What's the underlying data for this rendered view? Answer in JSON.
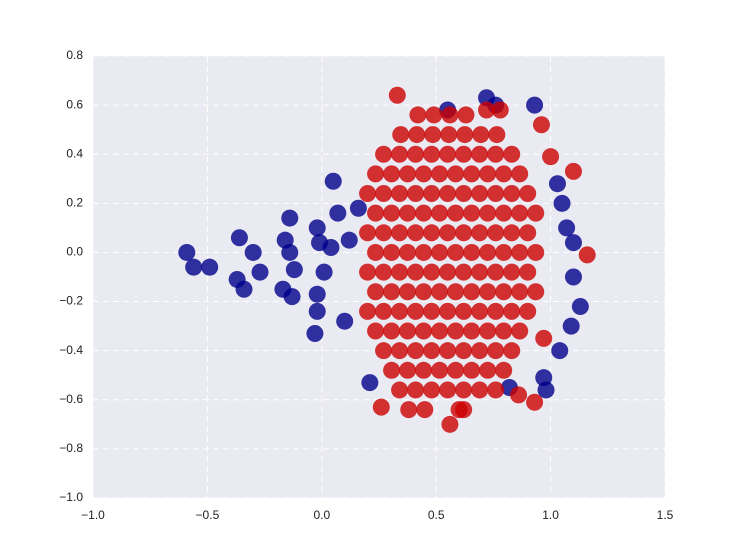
{
  "chart_data": {
    "type": "scatter",
    "xlim": [
      -1,
      1.5
    ],
    "xticks": [
      {
        "value": -1,
        "label": "−1.0"
      },
      {
        "value": -0.5,
        "label": "−0.5"
      },
      {
        "value": 0,
        "label": "0.0"
      },
      0.5,
      {
        "value": 1,
        "label": "1.0"
      },
      1.5
    ],
    "ylim": [
      -1,
      0.8
    ],
    "yticks": [
      {
        "value": -1,
        "label": "−1.0"
      },
      {
        "value": -0.8,
        "label": "−0.8"
      },
      {
        "value": -0.6,
        "label": "−0.6"
      },
      {
        "value": -0.4,
        "label": "−0.4"
      },
      {
        "value": -0.2,
        "label": "−0.2"
      },
      {
        "value": 0,
        "label": "0.0"
      },
      0.2,
      0.4,
      0.6,
      0.8
    ],
    "grid": true,
    "series": [
      {
        "color": "#00008b",
        "x": [
          -0.59,
          -0.56,
          -0.49,
          -0.36,
          -0.37,
          -0.34,
          -0.3,
          -0.27,
          -0.16,
          -0.14,
          -0.14,
          -0.12,
          -0.17,
          -0.13,
          -0.02,
          0.05,
          -0.01,
          0.01,
          -0.02,
          -0.02,
          -0.03,
          0.1,
          0.07,
          0.04,
          0.16,
          0.12,
          0.72,
          0.76,
          0.93,
          0.55,
          1.03,
          1.07,
          1.1,
          1.13,
          1.09,
          1.04,
          0.97,
          0.98,
          0.82,
          0.21,
          1.1,
          1.05
        ],
        "values": [
          0,
          -0.06,
          -0.06,
          0.06,
          -0.11,
          -0.15,
          0,
          -0.08,
          0.05,
          0.14,
          0,
          -0.07,
          -0.15,
          -0.18,
          0.1,
          0.29,
          0.04,
          -0.08,
          -0.17,
          -0.24,
          -0.33,
          -0.28,
          0.16,
          0.02,
          0.18,
          0.05,
          0.63,
          0.6,
          0.6,
          0.58,
          0.28,
          0.1,
          -0.1,
          -0.22,
          -0.3,
          -0.4,
          -0.51,
          -0.56,
          -0.55,
          -0.53,
          0.04,
          0.2
        ]
      },
      {
        "color": "#cc0000",
        "x": [
          0.42,
          0.49,
          0.56,
          0.63,
          0.345,
          0.415,
          0.485,
          0.555,
          0.625,
          0.695,
          0.765,
          0.27,
          0.34,
          0.41,
          0.48,
          0.55,
          0.62,
          0.69,
          0.76,
          0.83,
          0.235,
          0.305,
          0.375,
          0.445,
          0.515,
          0.585,
          0.655,
          0.725,
          0.795,
          0.865,
          0.2,
          0.27,
          0.34,
          0.41,
          0.48,
          0.55,
          0.62,
          0.69,
          0.76,
          0.83,
          0.9,
          0.235,
          0.305,
          0.375,
          0.445,
          0.515,
          0.585,
          0.655,
          0.725,
          0.795,
          0.865,
          0.935,
          0.2,
          0.27,
          0.34,
          0.41,
          0.48,
          0.55,
          0.62,
          0.69,
          0.76,
          0.83,
          0.9,
          0.235,
          0.305,
          0.375,
          0.445,
          0.515,
          0.585,
          0.655,
          0.725,
          0.795,
          0.865,
          0.935,
          0.2,
          0.27,
          0.34,
          0.41,
          0.48,
          0.55,
          0.62,
          0.69,
          0.76,
          0.83,
          0.9,
          0.235,
          0.305,
          0.375,
          0.445,
          0.515,
          0.585,
          0.655,
          0.725,
          0.795,
          0.865,
          0.935,
          0.2,
          0.27,
          0.34,
          0.41,
          0.48,
          0.55,
          0.62,
          0.69,
          0.76,
          0.83,
          0.9,
          0.235,
          0.305,
          0.375,
          0.445,
          0.515,
          0.585,
          0.655,
          0.725,
          0.795,
          0.865,
          0.27,
          0.34,
          0.41,
          0.48,
          0.55,
          0.62,
          0.69,
          0.76,
          0.83,
          0.305,
          0.375,
          0.445,
          0.515,
          0.585,
          0.655,
          0.725,
          0.795,
          0.34,
          0.41,
          0.48,
          0.55,
          0.62,
          0.69,
          0.76,
          0.38,
          0.45,
          0.62,
          0.33,
          0.72,
          0.78,
          1.16,
          1.1,
          1.0,
          0.96,
          0.56,
          0.6,
          0.97,
          0.93,
          0.86,
          0.26
        ],
        "values": [
          0.56,
          0.56,
          0.56,
          0.56,
          0.48,
          0.48,
          0.48,
          0.48,
          0.48,
          0.48,
          0.48,
          0.4,
          0.4,
          0.4,
          0.4,
          0.4,
          0.4,
          0.4,
          0.4,
          0.4,
          0.32,
          0.32,
          0.32,
          0.32,
          0.32,
          0.32,
          0.32,
          0.32,
          0.32,
          0.32,
          0.24,
          0.24,
          0.24,
          0.24,
          0.24,
          0.24,
          0.24,
          0.24,
          0.24,
          0.24,
          0.24,
          0.16,
          0.16,
          0.16,
          0.16,
          0.16,
          0.16,
          0.16,
          0.16,
          0.16,
          0.16,
          0.16,
          0.08,
          0.08,
          0.08,
          0.08,
          0.08,
          0.08,
          0.08,
          0.08,
          0.08,
          0.08,
          0.08,
          0,
          0,
          0,
          0,
          0,
          0,
          0,
          0,
          0,
          0,
          0,
          -0.08,
          -0.08,
          -0.08,
          -0.08,
          -0.08,
          -0.08,
          -0.08,
          -0.08,
          -0.08,
          -0.08,
          -0.08,
          -0.16,
          -0.16,
          -0.16,
          -0.16,
          -0.16,
          -0.16,
          -0.16,
          -0.16,
          -0.16,
          -0.16,
          -0.16,
          -0.24,
          -0.24,
          -0.24,
          -0.24,
          -0.24,
          -0.24,
          -0.24,
          -0.24,
          -0.24,
          -0.24,
          -0.24,
          -0.32,
          -0.32,
          -0.32,
          -0.32,
          -0.32,
          -0.32,
          -0.32,
          -0.32,
          -0.32,
          -0.32,
          -0.4,
          -0.4,
          -0.4,
          -0.4,
          -0.4,
          -0.4,
          -0.4,
          -0.4,
          -0.4,
          -0.48,
          -0.48,
          -0.48,
          -0.48,
          -0.48,
          -0.48,
          -0.48,
          -0.48,
          -0.56,
          -0.56,
          -0.56,
          -0.56,
          -0.56,
          -0.56,
          -0.56,
          -0.64,
          -0.64,
          -0.64,
          0.64,
          0.58,
          0.58,
          -0.01,
          0.33,
          0.39,
          0.52,
          -0.7,
          -0.64,
          -0.35,
          -0.61,
          -0.58,
          -0.63
        ]
      }
    ]
  }
}
